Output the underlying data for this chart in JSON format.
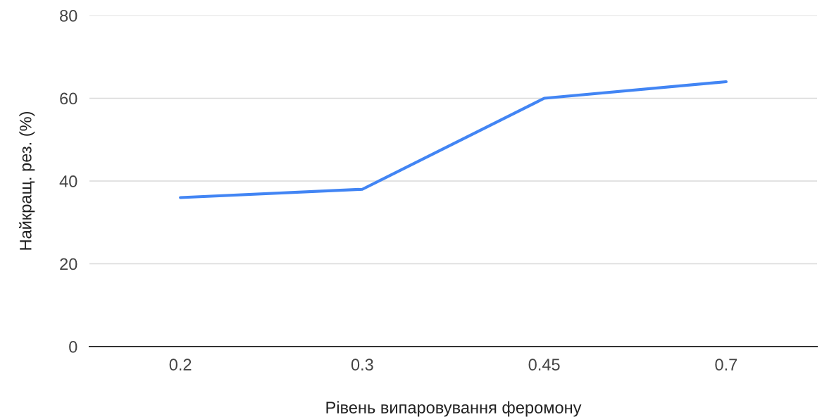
{
  "chart_data": {
    "type": "line",
    "xlabel": "Рівень випаровування феромону",
    "ylabel": "Найкращ. рез. (%)",
    "categories": [
      "0.2",
      "0.3",
      "0.45",
      "0.7"
    ],
    "series": [
      {
        "color": "#4285f4",
        "values": [
          36,
          38,
          60,
          64
        ]
      }
    ],
    "ylim": [
      0,
      80
    ],
    "yticks": [
      0,
      20,
      40,
      60,
      80
    ],
    "grid": "y",
    "legend": false,
    "marker": "none",
    "line_style": "solid"
  }
}
